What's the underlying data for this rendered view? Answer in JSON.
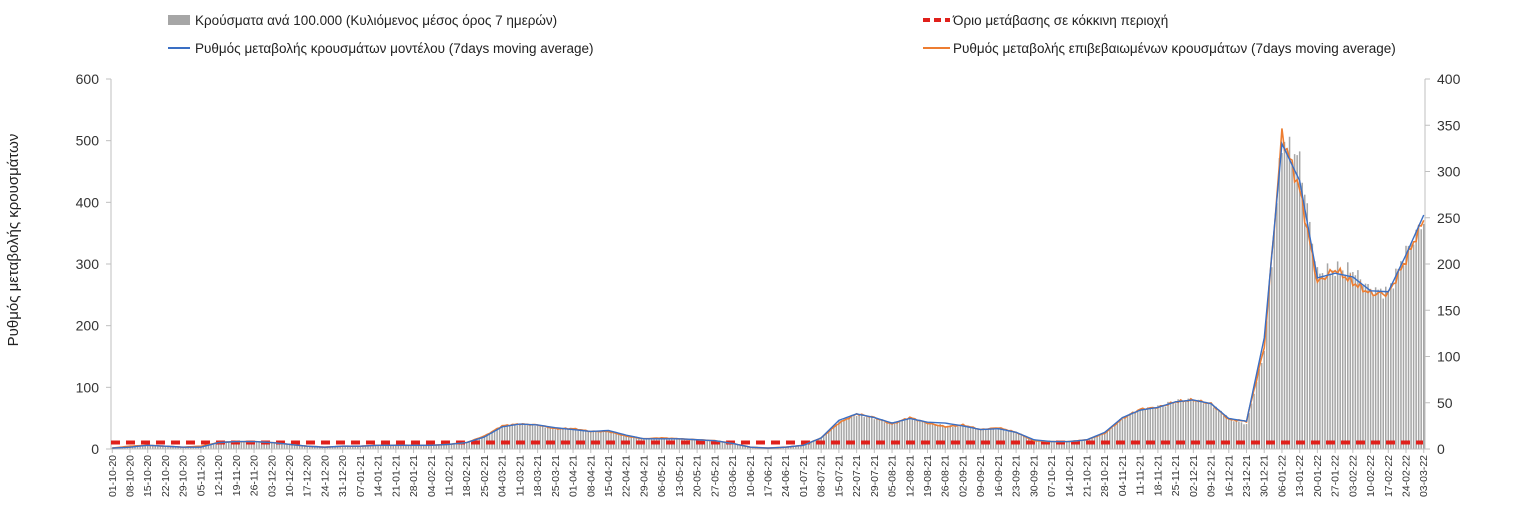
{
  "chart_data": {
    "type": "bar",
    "legend": {
      "bars": "Κρούσματα ανά 100.000 (Κυλιόμενος μέσος όρος 7 ημερών)",
      "threshold": "Όριο μετάβασης σε κόκκινη περιοχή",
      "model": "Ρυθμός μεταβολής κρουσμάτων μοντέλου (7days moving average)",
      "confirmed": "Ρυθμός μεταβολής επιβεβαιωμένων κρουσμάτων (7days moving average)"
    },
    "ylabel": "Ρυθμός μεταβολής κρουσμάτων",
    "ylim_left": [
      0,
      600
    ],
    "yticks_left": [
      "0",
      "100",
      "200",
      "300",
      "400",
      "500",
      "600"
    ],
    "ylim_right": [
      0,
      400
    ],
    "yticks_right": [
      "0",
      "50",
      "100",
      "150",
      "200",
      "250",
      "300",
      "350",
      "400"
    ],
    "x_start": "2020-10-01",
    "x_end": "2022-03-03",
    "x_tick_labels": [
      "01-10-20",
      "08-10-20",
      "15-10-20",
      "22-10-20",
      "29-10-20",
      "05-11-20",
      "12-11-20",
      "19-11-20",
      "26-11-20",
      "03-12-20",
      "10-12-20",
      "17-12-20",
      "24-12-20",
      "31-12-20",
      "07-01-21",
      "14-01-21",
      "21-01-21",
      "28-01-21",
      "04-02-21",
      "11-02-21",
      "18-02-21",
      "25-02-21",
      "04-03-21",
      "11-03-21",
      "18-03-21",
      "25-03-21",
      "01-04-21",
      "08-04-21",
      "15-04-21",
      "22-04-21",
      "29-04-21",
      "06-05-21",
      "13-05-21",
      "20-05-21",
      "27-05-21",
      "03-06-21",
      "10-06-21",
      "17-06-21",
      "24-06-21",
      "01-07-21",
      "08-07-21",
      "15-07-21",
      "22-07-21",
      "29-07-21",
      "05-08-21",
      "12-08-21",
      "19-08-21",
      "26-08-21",
      "02-09-21",
      "09-09-21",
      "16-09-21",
      "23-09-21",
      "30-09-21",
      "07-10-21",
      "14-10-21",
      "21-10-21",
      "28-10-21",
      "04-11-21",
      "11-11-21",
      "18-11-21",
      "25-11-21",
      "02-12-21",
      "09-12-21",
      "16-12-21",
      "23-12-21",
      "30-12-21",
      "06-01-22",
      "13-01-22",
      "20-01-22",
      "27-01-22",
      "03-02-22",
      "10-02-22",
      "17-02-22",
      "24-02-22",
      "03-03-22"
    ],
    "threshold_right": 7,
    "weekly_bars_left": [
      2,
      4,
      5,
      4,
      3,
      4,
      10,
      12,
      12,
      10,
      8,
      5,
      4,
      5,
      5,
      5,
      6,
      5,
      6,
      7,
      10,
      20,
      37,
      40,
      38,
      33,
      33,
      28,
      29,
      22,
      16,
      17,
      16,
      14,
      13,
      9,
      3,
      2,
      3,
      6,
      18,
      45,
      55,
      50,
      42,
      50,
      43,
      37,
      37,
      32,
      33,
      27,
      14,
      12,
      12,
      15,
      26,
      50,
      64,
      68,
      77,
      80,
      74,
      50,
      40,
      160,
      500,
      470,
      285,
      290,
      290,
      258,
      255,
      320,
      370
    ],
    "model_right": [
      1,
      2,
      4,
      3,
      2,
      2,
      7,
      8,
      8,
      7,
      5,
      3,
      2,
      3,
      3,
      4,
      4,
      4,
      4,
      5,
      7,
      13,
      24,
      27,
      26,
      23,
      21,
      19,
      20,
      15,
      11,
      11,
      11,
      10,
      9,
      6,
      2,
      1,
      2,
      4,
      12,
      31,
      38,
      34,
      28,
      33,
      29,
      28,
      25,
      21,
      22,
      18,
      10,
      8,
      8,
      10,
      18,
      34,
      42,
      45,
      51,
      53,
      49,
      33,
      30,
      120,
      330,
      290,
      185,
      190,
      186,
      171,
      170,
      210,
      253
    ],
    "confirmed_right": [
      1,
      3,
      4,
      3,
      2,
      3,
      7,
      8,
      8,
      7,
      5,
      3,
      2,
      3,
      3,
      4,
      4,
      4,
      4,
      5,
      7,
      14,
      25,
      27,
      26,
      22,
      22,
      19,
      19,
      14,
      11,
      12,
      11,
      10,
      9,
      6,
      2,
      1,
      2,
      4,
      12,
      28,
      38,
      34,
      27,
      34,
      28,
      24,
      26,
      21,
      23,
      18,
      9,
      8,
      8,
      10,
      17,
      33,
      43,
      45,
      51,
      53,
      49,
      32,
      30,
      110,
      340,
      280,
      180,
      194,
      180,
      168,
      168,
      205,
      248
    ]
  }
}
